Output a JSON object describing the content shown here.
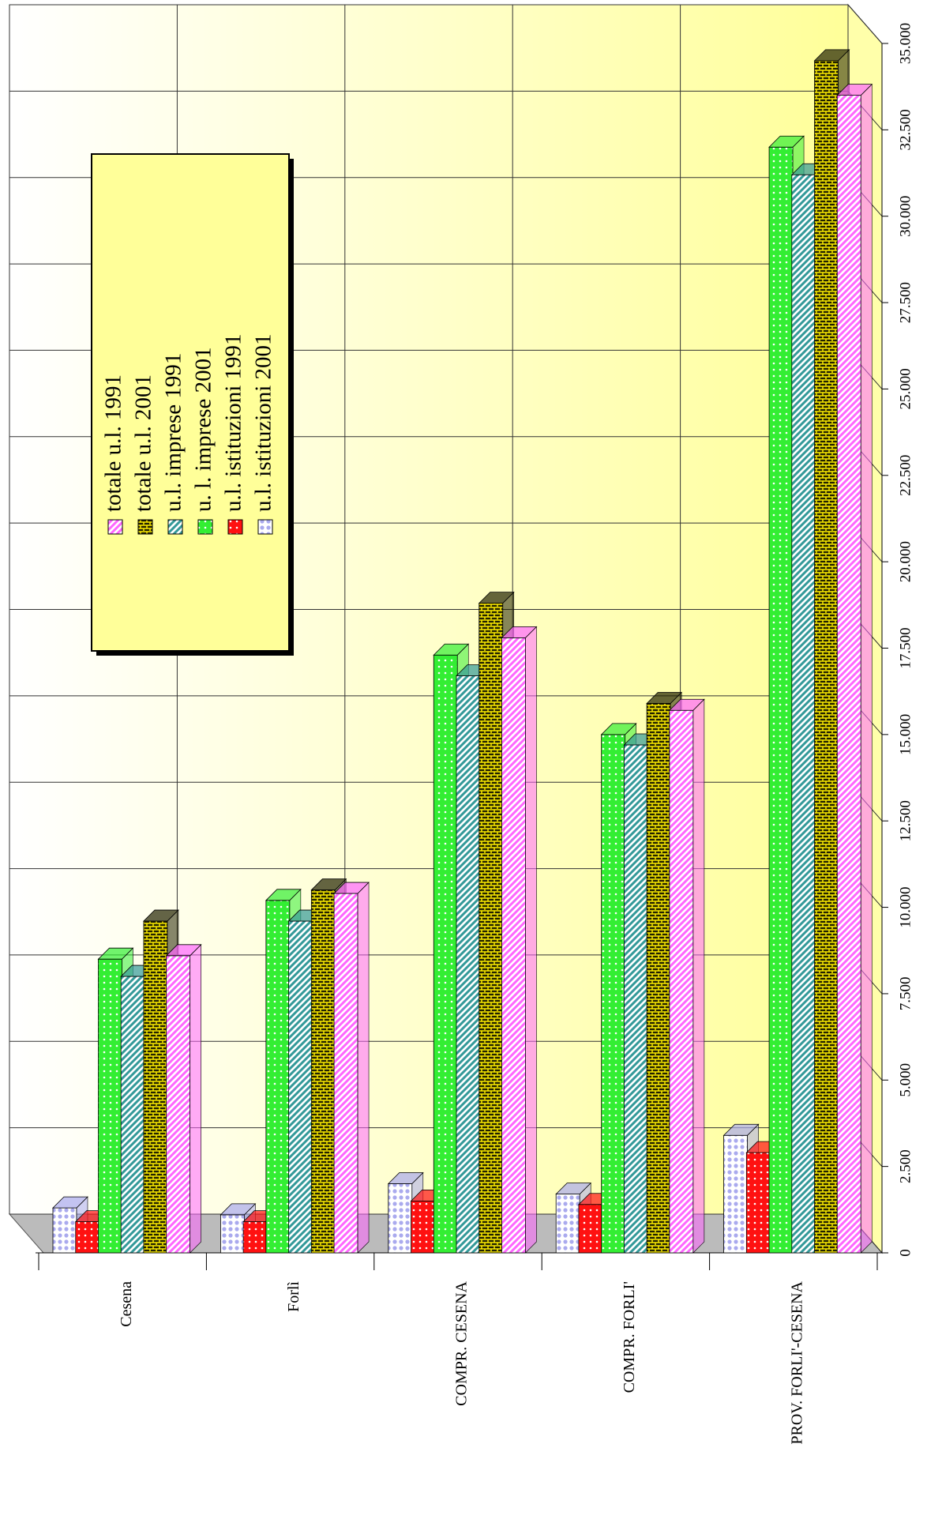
{
  "chart_data": {
    "type": "bar",
    "categories": [
      "Cesena",
      "Forlì",
      "COMPR. CESENA",
      "COMPR. FORLI'",
      "PROV. FORLI'-CESENA"
    ],
    "series": [
      {
        "name": "totale u.l.  1991",
        "color": "#ff66ff",
        "values": [
          8600,
          10400,
          17800,
          15700,
          33500
        ]
      },
      {
        "name": "totale u.l. 2001",
        "color": "#222200",
        "values": [
          9600,
          10500,
          18800,
          15900,
          34500
        ]
      },
      {
        "name": "u.l. imprese 1991",
        "color": "#339999",
        "values": [
          8000,
          9600,
          16700,
          14700,
          31200
        ]
      },
      {
        "name": "u. l. imprese 2001",
        "color": "#33ee33",
        "values": [
          8500,
          10200,
          17300,
          15000,
          32000
        ]
      },
      {
        "name": "u.l. istituzioni 1991",
        "color": "#ff1111",
        "values": [
          900,
          900,
          1500,
          1400,
          2900
        ]
      },
      {
        "name": "u.l. istituzioni 2001",
        "color": "#aaaaee",
        "values": [
          1300,
          1100,
          2000,
          1700,
          3400
        ]
      }
    ],
    "ylim": [
      0,
      35000
    ],
    "yticks": [
      0,
      {
        "value": 2500,
        "label": "2.500"
      },
      {
        "value": 5000,
        "label": "5.000"
      },
      {
        "value": 7500,
        "label": "7.500"
      },
      {
        "value": 10000,
        "label": "10.000"
      },
      {
        "value": 12500,
        "label": "12.500"
      },
      {
        "value": 15000,
        "label": "15.000"
      },
      {
        "value": 17500,
        "label": "17.500"
      },
      {
        "value": 20000,
        "label": "20.000"
      },
      {
        "value": 22500,
        "label": "22.500"
      },
      {
        "value": 25000,
        "label": "25.000"
      },
      {
        "value": 27500,
        "label": "27.500"
      },
      {
        "value": 30000,
        "label": "30.000"
      },
      {
        "value": 32500,
        "label": "32.500"
      },
      {
        "value": 35000,
        "label": "35.000"
      }
    ],
    "grid": true
  }
}
